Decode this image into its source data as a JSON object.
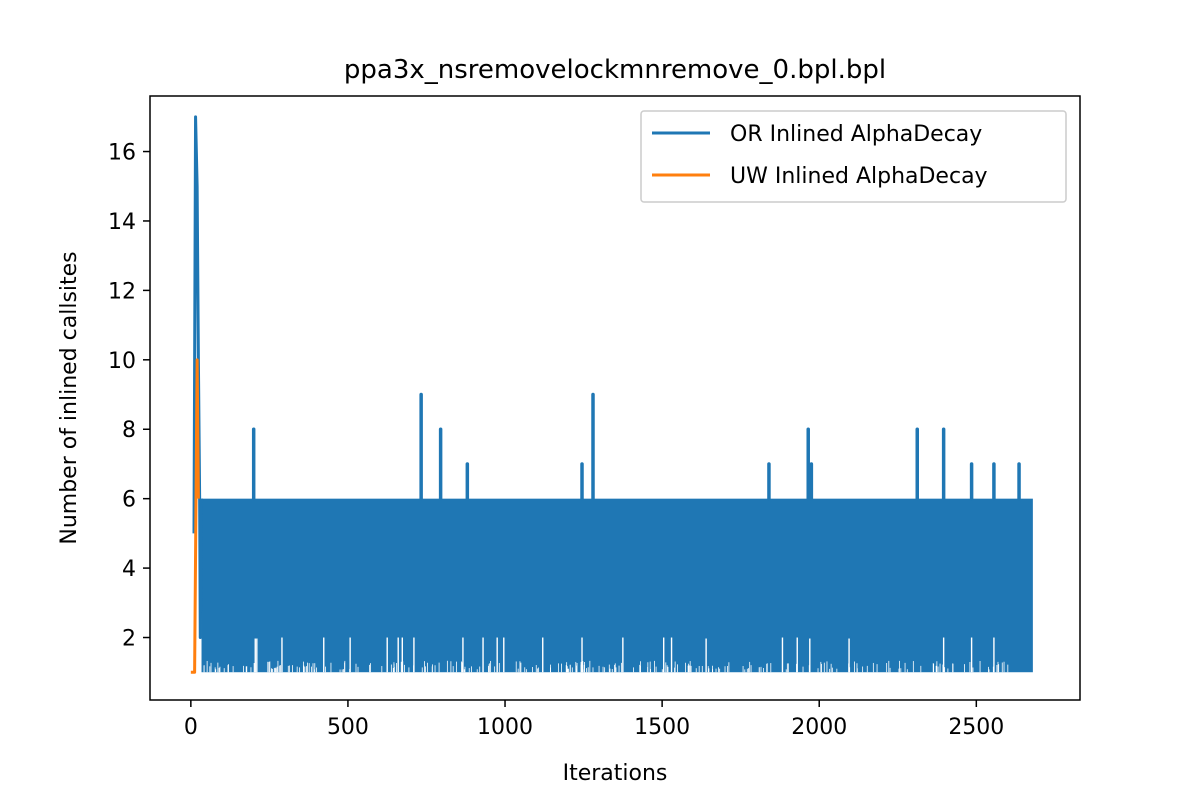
{
  "chart_data": {
    "type": "line",
    "title": "ppa3x_nsremovelockmnremove_0.bpl.bpl",
    "xlabel": "Iterations",
    "ylabel": "Number of inlined callsites",
    "xlim": [
      -130,
      2830
    ],
    "ylim": [
      0.2,
      17.6
    ],
    "xticks": [
      0,
      500,
      1000,
      1500,
      2000,
      2500
    ],
    "yticks": [
      2,
      4,
      6,
      8,
      10,
      12,
      14,
      16
    ],
    "grid": false,
    "legend_position": "top-right",
    "series": [
      {
        "name": "OR Inlined AlphaDecay",
        "color": "#1f77b4",
        "x_range": [
          10,
          2680
        ],
        "oscillation_low": 1,
        "oscillation_high": 6,
        "points": [
          [
            10,
            5
          ],
          [
            15,
            17
          ],
          [
            20,
            15
          ],
          [
            24,
            10
          ],
          [
            28,
            6
          ],
          [
            30,
            2
          ],
          [
            34,
            6
          ]
        ],
        "spikes": [
          [
            200,
            8
          ],
          [
            733,
            9
          ],
          [
            795,
            8
          ],
          [
            880,
            7
          ],
          [
            1245,
            7
          ],
          [
            1280,
            9
          ],
          [
            1840,
            7
          ],
          [
            1965,
            8
          ],
          [
            1975,
            7
          ],
          [
            2312,
            8
          ],
          [
            2396,
            8
          ],
          [
            2485,
            7
          ],
          [
            2556,
            7
          ],
          [
            2636,
            7
          ]
        ],
        "dips": [
          [
            205,
            2
          ],
          [
            210,
            2
          ],
          [
            1640,
            2
          ],
          [
            1970,
            2
          ],
          [
            2095,
            2
          ]
        ]
      },
      {
        "name": "UW Inlined AlphaDecay",
        "color": "#ff7f0e",
        "points": [
          [
            0,
            1
          ],
          [
            8,
            1
          ],
          [
            12,
            1
          ],
          [
            20,
            10
          ],
          [
            24,
            6
          ]
        ]
      }
    ]
  }
}
